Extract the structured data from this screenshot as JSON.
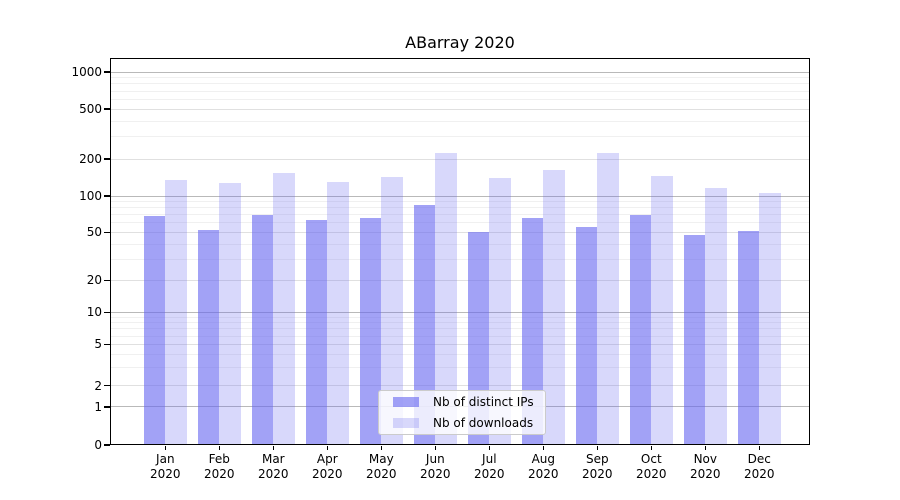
{
  "chart_data": {
    "type": "bar",
    "title": "ABarray 2020",
    "categories": [
      {
        "month": "Jan",
        "year": "2020"
      },
      {
        "month": "Feb",
        "year": "2020"
      },
      {
        "month": "Mar",
        "year": "2020"
      },
      {
        "month": "Apr",
        "year": "2020"
      },
      {
        "month": "May",
        "year": "2020"
      },
      {
        "month": "Jun",
        "year": "2020"
      },
      {
        "month": "Jul",
        "year": "2020"
      },
      {
        "month": "Aug",
        "year": "2020"
      },
      {
        "month": "Sep",
        "year": "2020"
      },
      {
        "month": "Oct",
        "year": "2020"
      },
      {
        "month": "Nov",
        "year": "2020"
      },
      {
        "month": "Dec",
        "year": "2020"
      }
    ],
    "series": [
      {
        "name": "Nb of distinct IPs",
        "color": "rgba(100,100,240,0.6)",
        "values": [
          69,
          52,
          70,
          64,
          66,
          84,
          50,
          66,
          55,
          70,
          48,
          51
        ]
      },
      {
        "name": "Nb of downloads",
        "color": "rgba(100,100,240,0.25)",
        "values": [
          135,
          127,
          155,
          129,
          144,
          225,
          140,
          163,
          225,
          146,
          117,
          106
        ]
      }
    ],
    "y_axis": {
      "scale": "log-with-zero",
      "ticks": [
        0,
        1,
        2,
        5,
        10,
        20,
        50,
        100,
        200,
        500,
        1000
      ],
      "ylim": [
        0,
        1300
      ]
    },
    "xlabel": "",
    "ylabel": "",
    "grid": true,
    "legend_position": "bottom-center"
  }
}
